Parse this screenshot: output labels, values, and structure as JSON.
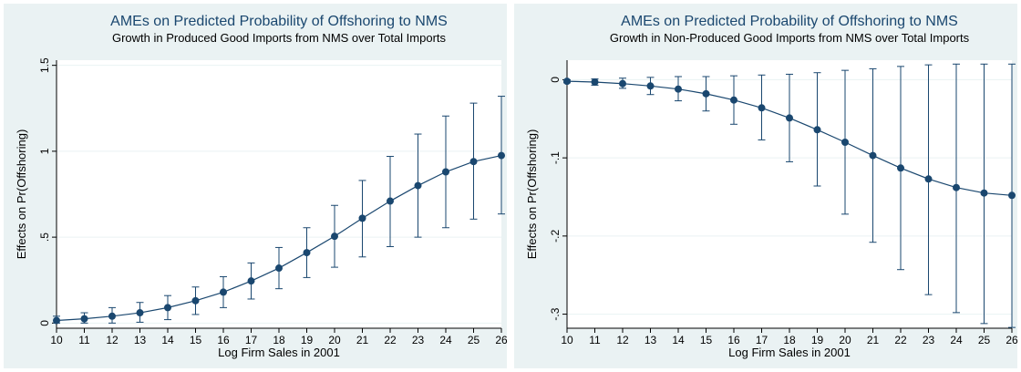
{
  "colors": {
    "background": "#eaf2f3",
    "plot_background": "#ffffff",
    "series": "#1a476f",
    "grid": "#eaf2f3",
    "title": "#1a476f"
  },
  "chart_data": [
    {
      "type": "line",
      "title": "AMEs on Predicted Probability of Offshoring to NMS",
      "subtitle": "Growth in Produced Good Imports from NMS over Total Imports",
      "xlabel": "Log Firm Sales in 2001",
      "ylabel": "Effects on Pr(Offshoring)",
      "xlim": [
        10,
        26
      ],
      "ylim": [
        -0.03,
        1.53
      ],
      "x_ticks": [
        10,
        11,
        12,
        13,
        14,
        15,
        16,
        17,
        18,
        19,
        20,
        21,
        22,
        23,
        24,
        25,
        26
      ],
      "y_ticks": [
        0,
        0.5,
        1,
        1.5
      ],
      "y_tick_labels": [
        "0",
        ".5",
        "1",
        "1.5"
      ],
      "grid": true,
      "x": [
        10,
        11,
        12,
        13,
        14,
        15,
        16,
        17,
        18,
        19,
        20,
        21,
        22,
        23,
        24,
        25,
        26
      ],
      "series": [
        {
          "values": [
            0.015,
            0.025,
            0.04,
            0.06,
            0.09,
            0.13,
            0.18,
            0.245,
            0.32,
            0.41,
            0.505,
            0.61,
            0.71,
            0.8,
            0.88,
            0.94,
            0.975
          ],
          "ci_low": [
            0.0,
            0.0,
            0.0,
            0.005,
            0.02,
            0.05,
            0.09,
            0.14,
            0.2,
            0.265,
            0.325,
            0.385,
            0.445,
            0.5,
            0.555,
            0.605,
            0.635
          ],
          "ci_high": [
            0.04,
            0.06,
            0.09,
            0.12,
            0.16,
            0.21,
            0.27,
            0.35,
            0.44,
            0.555,
            0.685,
            0.83,
            0.97,
            1.1,
            1.205,
            1.28,
            1.32
          ]
        }
      ]
    },
    {
      "type": "line",
      "title": "AMEs on Predicted Probability of Offshoring to NMS",
      "subtitle": "Growth in Non-Produced Good Imports from NMS over Total Imports",
      "xlabel": "Log Firm Sales in 2001",
      "ylabel": "Effects on Pr(Offshoring)",
      "xlim": [
        10,
        26
      ],
      "ylim": [
        -0.318,
        0.025
      ],
      "x_ticks": [
        10,
        11,
        12,
        13,
        14,
        15,
        16,
        17,
        18,
        19,
        20,
        21,
        22,
        23,
        24,
        25,
        26
      ],
      "y_ticks": [
        0,
        -0.1,
        -0.2,
        -0.3
      ],
      "y_tick_labels": [
        "0",
        "-.1",
        "-.2",
        "-.3"
      ],
      "grid": true,
      "x": [
        10,
        11,
        12,
        13,
        14,
        15,
        16,
        17,
        18,
        19,
        20,
        21,
        22,
        23,
        24,
        25,
        26
      ],
      "series": [
        {
          "values": [
            -0.002,
            -0.003,
            -0.005,
            -0.008,
            -0.012,
            -0.018,
            -0.026,
            -0.036,
            -0.049,
            -0.064,
            -0.08,
            -0.097,
            -0.113,
            -0.127,
            -0.138,
            -0.145,
            -0.148
          ],
          "ci_low": [
            -0.004,
            -0.007,
            -0.011,
            -0.019,
            -0.027,
            -0.04,
            -0.057,
            -0.077,
            -0.105,
            -0.136,
            -0.172,
            -0.208,
            -0.243,
            -0.275,
            -0.298,
            -0.312,
            -0.317
          ],
          "ci_high": [
            0.0,
            0.001,
            0.002,
            0.003,
            0.004,
            0.004,
            0.005,
            0.006,
            0.007,
            0.009,
            0.012,
            0.014,
            0.017,
            0.019,
            0.02,
            0.02,
            0.02
          ]
        }
      ]
    }
  ]
}
